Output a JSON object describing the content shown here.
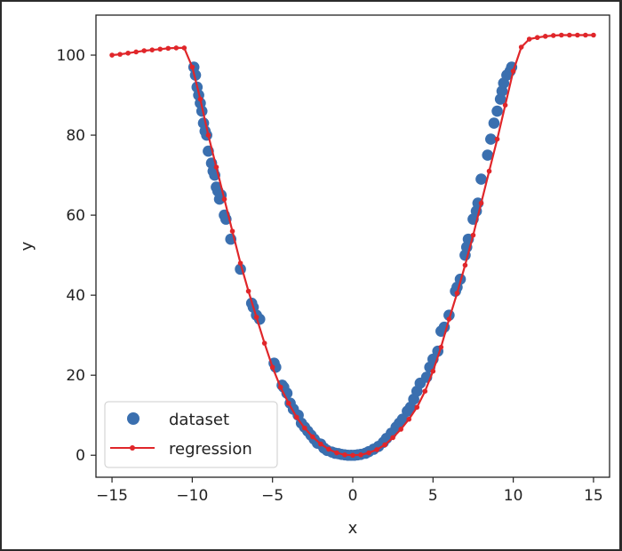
{
  "chart_data": {
    "type": "line+scatter",
    "title": "",
    "xlabel": "x",
    "ylabel": "y",
    "xlim": [
      -16,
      16
    ],
    "ylim": [
      -5.5,
      110
    ],
    "xticks": [
      -15,
      -10,
      -5,
      0,
      5,
      10,
      15
    ],
    "yticks": [
      0,
      20,
      40,
      60,
      80,
      100
    ],
    "xtick_labels": [
      "−15",
      "−10",
      "−5",
      "0",
      "5",
      "10",
      "15"
    ],
    "ytick_labels": [
      "0",
      "20",
      "40",
      "60",
      "80",
      "100"
    ],
    "legend": {
      "position": "lower-left",
      "entries": [
        {
          "label": "dataset",
          "kind": "scatter"
        },
        {
          "label": "regression",
          "kind": "line-marker"
        }
      ]
    },
    "colors": {
      "dataset": "#3a6faf",
      "regression": "#e0262a",
      "axes": "#222222",
      "background": "#ffffff"
    },
    "series": [
      {
        "name": "dataset",
        "type": "scatter",
        "x": [
          -9.9,
          -9.8,
          -9.7,
          -9.6,
          -9.5,
          -9.4,
          -9.3,
          -9.2,
          -9.1,
          -9.0,
          -8.8,
          -8.7,
          -8.6,
          -8.5,
          -8.4,
          -8.3,
          -8.2,
          -8.0,
          -7.9,
          -7.6,
          -7.0,
          -6.3,
          -6.2,
          -6.0,
          -5.8,
          -4.9,
          -4.8,
          -4.4,
          -4.3,
          -4.1,
          -3.9,
          -3.7,
          -3.4,
          -3.2,
          -3.0,
          -2.8,
          -2.6,
          -2.4,
          -2.2,
          -2.0,
          -1.8,
          -1.6,
          -1.3,
          -1.1,
          -0.9,
          -0.7,
          -0.5,
          -0.3,
          -0.1,
          0.1,
          0.3,
          0.5,
          0.8,
          1.0,
          1.3,
          1.6,
          1.9,
          2.1,
          2.4,
          2.7,
          2.9,
          3.1,
          3.4,
          3.6,
          3.8,
          4.0,
          4.2,
          4.6,
          4.8,
          5.0,
          5.3,
          5.5,
          5.7,
          6.0,
          6.4,
          6.5,
          6.7,
          7.0,
          7.1,
          7.2,
          7.5,
          7.7,
          7.8,
          8.0,
          8.4,
          8.6,
          8.8,
          9.0,
          9.2,
          9.3,
          9.4,
          9.6,
          9.8,
          9.9
        ],
        "y": [
          97,
          95,
          92,
          90,
          88,
          86,
          83,
          81,
          80,
          76,
          73,
          71,
          70,
          67,
          66,
          64,
          65,
          60,
          59,
          54,
          46.5,
          38,
          37,
          35,
          34,
          23,
          22,
          17.5,
          17,
          15.5,
          13,
          11.5,
          10,
          8,
          7,
          6,
          5,
          4,
          3,
          2.8,
          1.8,
          1.2,
          0.8,
          0.5,
          0.4,
          0.2,
          0.1,
          0.0,
          0.0,
          0.0,
          0.1,
          0.2,
          0.5,
          0.9,
          1.5,
          2.2,
          3.2,
          4.2,
          5.5,
          7,
          8,
          9,
          11,
          12,
          14,
          16,
          18,
          19.5,
          22,
          24,
          26,
          31,
          32,
          35,
          41,
          42,
          44,
          50,
          52,
          54,
          59,
          61,
          63,
          69,
          75,
          79,
          83,
          86,
          89,
          91,
          93,
          95,
          96,
          97
        ]
      },
      {
        "name": "regression",
        "type": "line",
        "x": [
          -15.0,
          -14.5,
          -14.0,
          -13.5,
          -13.0,
          -12.5,
          -12.0,
          -11.5,
          -11.0,
          -10.5,
          -10.0,
          -9.5,
          -9.0,
          -8.5,
          -8.0,
          -7.5,
          -7.0,
          -6.5,
          -6.0,
          -5.5,
          -5.0,
          -4.5,
          -4.0,
          -3.5,
          -3.0,
          -2.5,
          -2.0,
          -1.5,
          -1.0,
          -0.5,
          0.0,
          0.5,
          1.0,
          1.5,
          2.0,
          2.5,
          3.0,
          3.5,
          4.0,
          4.5,
          5.0,
          5.5,
          6.0,
          6.5,
          7.0,
          7.5,
          8.0,
          8.5,
          9.0,
          9.5,
          10.0,
          10.5,
          11.0,
          11.5,
          12.0,
          12.5,
          13.0,
          13.5,
          14.0,
          14.5,
          15.0
        ],
        "y": [
          100,
          100.2,
          100.5,
          100.8,
          101.1,
          101.3,
          101.5,
          101.7,
          101.8,
          101.8,
          97,
          89,
          80,
          72,
          64,
          56,
          48,
          41,
          34.5,
          28,
          22,
          17,
          13,
          9.5,
          6.8,
          4.6,
          2.8,
          1.5,
          0.6,
          0.1,
          0.0,
          0.1,
          0.6,
          1.4,
          2.6,
          4.4,
          6.5,
          9,
          12,
          16,
          21,
          27,
          34,
          40.5,
          47.5,
          55,
          63,
          71,
          79,
          87.5,
          96,
          102,
          104,
          104.4,
          104.7,
          104.9,
          105,
          105,
          105,
          105,
          105
        ]
      }
    ]
  }
}
